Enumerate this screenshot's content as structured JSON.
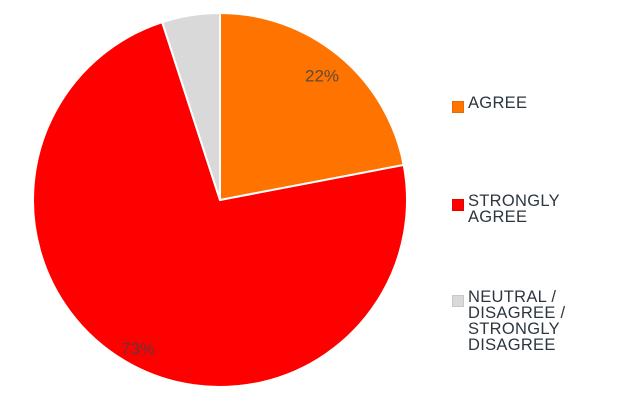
{
  "chart_data": {
    "type": "pie",
    "slices": [
      {
        "label": "AGREE",
        "value": 22,
        "value_label": "22%",
        "color": "#ff7300"
      },
      {
        "label": "STRONGLY AGREE",
        "value": 73,
        "value_label": "73%",
        "color": "#ff0000"
      },
      {
        "label": "NEUTRAL / DISAGREE / STRONGLY DISAGREE",
        "value": 5,
        "value_label": "",
        "color": "#d9d9d9"
      }
    ],
    "start_angle_deg": 0,
    "direction": "clockwise",
    "legend_position": "right",
    "legend": [
      {
        "text": "AGREE",
        "color": "#ff7300"
      },
      {
        "text": "STRONGLY\nAGREE",
        "color": "#ff0000"
      },
      {
        "text": "NEUTRAL /\nDISAGREE /\nSTRONGLY\nDISAGREE",
        "color": "#d9d9d9"
      }
    ]
  }
}
